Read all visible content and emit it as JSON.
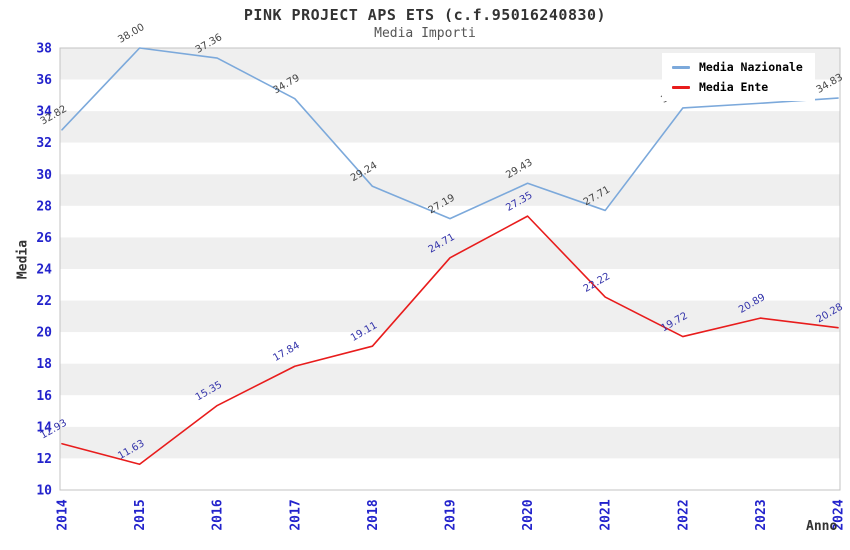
{
  "title": "PINK PROJECT APS ETS (c.f.95016240830)",
  "subtitle": "Media Importi",
  "y_axis_title": "Media",
  "x_axis_title": "Anno",
  "legend": {
    "position": "top-right",
    "items": [
      {
        "label": "Media Nazionale",
        "color": "#7ca9db"
      },
      {
        "label": "Media Ente",
        "color": "#e81c1c"
      }
    ]
  },
  "colors": {
    "plot_band_gray": "#efefef",
    "plot_band_white": "#ffffff",
    "plot_border": "#c3c3c3",
    "axis_tick_text": "#2323cc",
    "title_text": "#333333",
    "subtitle_text": "#555555"
  },
  "chart_data": {
    "type": "line",
    "x": [
      2014,
      2015,
      2016,
      2017,
      2018,
      2019,
      2020,
      2021,
      2022,
      2023,
      2024
    ],
    "series": [
      {
        "name": "Media Nazionale",
        "color": "#7ca9db",
        "label_color": "#444444",
        "values": [
          32.82,
          38.0,
          37.36,
          34.79,
          29.24,
          27.19,
          29.43,
          27.71,
          34.2,
          34.5,
          34.83
        ]
      },
      {
        "name": "Media Ente",
        "color": "#e81c1c",
        "label_color": "#3333aa",
        "values": [
          12.93,
          11.63,
          15.35,
          17.84,
          19.11,
          24.71,
          27.35,
          22.22,
          19.72,
          20.89,
          20.28
        ]
      }
    ],
    "ylim": [
      10,
      38
    ],
    "y_ticks": [
      10,
      12,
      14,
      16,
      18,
      20,
      22,
      24,
      26,
      28,
      30,
      32,
      34,
      36,
      38
    ],
    "grid": "horizontal-alternating-bands",
    "legend_position": "top-right",
    "point_labels": "value with 2 decimals, rotated -30deg",
    "note": "2022 and 2023 Media Nazionale point labels are hidden behind the legend box; values estimated from line position"
  }
}
